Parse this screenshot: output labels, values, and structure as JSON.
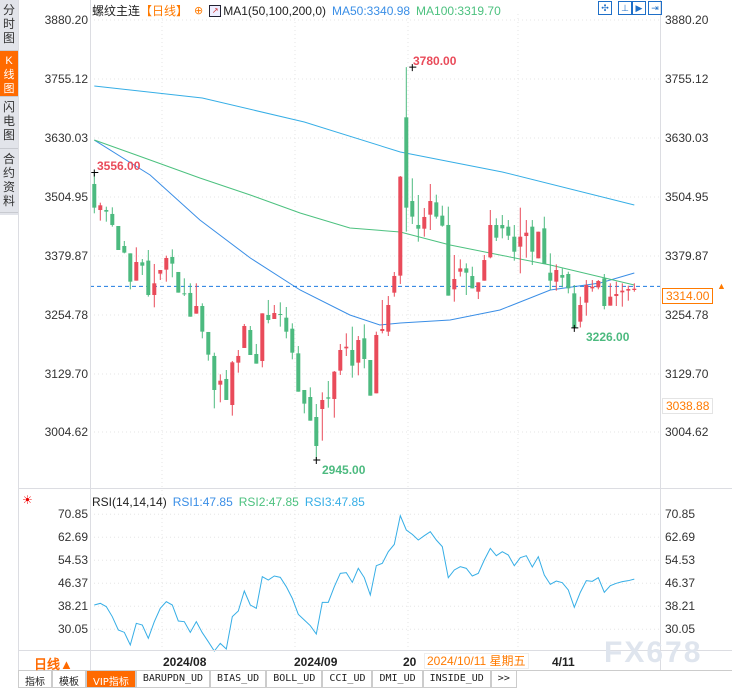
{
  "sidebar": {
    "tabs": [
      {
        "label": "分时图",
        "active": false
      },
      {
        "label": "K线图",
        "active": true
      },
      {
        "label": "闪电图",
        "active": false
      },
      {
        "label": "合约资料",
        "active": false
      }
    ]
  },
  "header": {
    "symbol": "螺纹主连",
    "period": "【日线】",
    "indicator": "MA1(50,100,200,0)",
    "ma50": "MA50:3340.98",
    "ma100": "MA100:3319.70",
    "toolbar_icons": [
      "crosshair-icon",
      "zoom-range-icon",
      "play-icon",
      "jump-end-icon"
    ]
  },
  "price_axis": {
    "ticks": [
      "3880.20",
      "3755.12",
      "3630.03",
      "3504.95",
      "3379.87",
      "3254.78",
      "3129.70",
      "3004.62"
    ],
    "current_tag": "3314.00",
    "low_tag": "3038.88"
  },
  "annotations": {
    "start": "3556.00",
    "high": "3780.00",
    "low": "2945.00",
    "recent_low": "3226.00"
  },
  "rsi": {
    "title": "RSI(14,14,14)",
    "rsi1": "RSI1:47.85",
    "rsi2": "RSI2:47.85",
    "rsi3": "RSI3:47.85",
    "ticks": [
      "70.85",
      "62.69",
      "54.53",
      "46.37",
      "38.21",
      "30.05"
    ]
  },
  "time_axis": {
    "period_label": "日线▲",
    "labels": [
      "2024/08",
      "2024/09",
      "20",
      "4/11"
    ],
    "tooltip": "2024/10/11 星期五"
  },
  "tabs": [
    {
      "label": "指标"
    },
    {
      "label": "模板"
    },
    {
      "label": "VIP指标"
    },
    {
      "label": "BARUPDN_UD"
    },
    {
      "label": "BIAS_UD"
    },
    {
      "label": "BOLL_UD"
    },
    {
      "label": "CCI_UD"
    },
    {
      "label": "DMI_UD"
    },
    {
      "label": "INSIDE_UD"
    },
    {
      "label": ">>"
    }
  ],
  "watermark": "FX678",
  "colors": {
    "up": "#e94b5a",
    "down": "#4cba7f",
    "ma50": "#3a8ee6",
    "ma100": "#4cc17f",
    "ma200": "#36aee6",
    "rsi": "#36aee6",
    "accent": "#ff6a00",
    "last_price_line": "#1e7be0"
  },
  "chart_data": {
    "type": "candlestick",
    "ylim": [
      3004.62,
      3880.2
    ],
    "last_price": 3314.0,
    "candles_ohlc": [
      [
        3531.7,
        3556,
        3469.4,
        3481.4
      ],
      [
        3476.4,
        3492,
        3453.8,
        3486.4
      ],
      [
        3476.4,
        3483.5,
        3451.6,
        3472.9
      ],
      [
        3468,
        3482.1,
        3441,
        3444.6
      ],
      [
        3442.4,
        3442.4,
        3391.4,
        3391.4
      ],
      [
        3399.9,
        3410.6,
        3384.3,
        3385.8
      ],
      [
        3384.3,
        3384.3,
        3307.8,
        3324.1
      ],
      [
        3326.3,
        3397.1,
        3326.3,
        3365.9
      ],
      [
        3365.2,
        3372.3,
        3338.3,
        3358.1
      ],
      [
        3368.8,
        3391.4,
        3292.3,
        3295.8
      ],
      [
        3295.8,
        3361.7,
        3269.6,
        3320.6
      ],
      [
        3341.1,
        3348.9,
        3327.7,
        3348.9
      ],
      [
        3349.6,
        3379.4,
        3324.1,
        3374.4
      ],
      [
        3376.6,
        3392.8,
        3333.4,
        3362.4
      ],
      [
        3344.7,
        3344.7,
        3300.8,
        3300.8
      ],
      [
        3299.3,
        3331.2,
        3293.7,
        3297.9
      ],
      [
        3300.1,
        3320.6,
        3249.7,
        3249.7
      ],
      [
        3256.1,
        3320.6,
        3256.1,
        3272.4
      ],
      [
        3272.4,
        3278.1,
        3203.7,
        3217.9
      ],
      [
        3217.2,
        3217.2,
        3156.2,
        3169
      ],
      [
        3166.2,
        3173.2,
        3054.9,
        3093.9
      ],
      [
        3105.2,
        3127.2,
        3067.7,
        3113.7
      ],
      [
        3117.3,
        3136.4,
        3072.7,
        3072.7
      ],
      [
        3062,
        3155.5,
        3039.4,
        3152.7
      ],
      [
        3152,
        3178.9,
        3130.7,
        3166.2
      ],
      [
        3183.2,
        3234.2,
        3183.2,
        3229.9
      ],
      [
        3221.4,
        3229.9,
        3168.3,
        3168.3
      ],
      [
        3170.4,
        3191.7,
        3149.9,
        3149.9
      ],
      [
        3155.5,
        3256.8,
        3142.1,
        3256.8
      ],
      [
        3253.3,
        3285.2,
        3235.6,
        3242.7
      ],
      [
        3244.8,
        3274.5,
        3244.8,
        3257.5
      ],
      [
        3255.4,
        3280.2,
        3228.5,
        3253.3
      ],
      [
        3247.6,
        3270.3,
        3203.7,
        3217.8
      ],
      [
        3224.2,
        3235.6,
        3159.1,
        3173.2
      ],
      [
        3171.8,
        3187.4,
        3090.3,
        3090.3
      ],
      [
        3093.9,
        3093.9,
        3044.3,
        3064.9
      ],
      [
        3079,
        3099.5,
        3028.7,
        3028.7
      ],
      [
        3036.5,
        3064.1,
        2945,
        2974.9
      ],
      [
        3053.5,
        3088.9,
        2986.2,
        3072.6
      ],
      [
        3078.3,
        3113,
        3056.3,
        3075.5
      ],
      [
        3074.8,
        3134.3,
        3035.1,
        3132.8
      ],
      [
        3135,
        3191.6,
        3125.8,
        3178.9
      ],
      [
        3182.4,
        3214.3,
        3166.1,
        3185.9
      ],
      [
        3178.9,
        3228.5,
        3120.1,
        3145.6
      ],
      [
        3152,
        3208.6,
        3125.1,
        3200.1
      ],
      [
        3203.7,
        3233.4,
        3140,
        3159.8
      ],
      [
        3157.6,
        3157.6,
        3081.8,
        3081.8
      ],
      [
        3086.8,
        3217.9,
        3086.8,
        3210.8
      ],
      [
        3219.3,
        3285.2,
        3214.3,
        3223.5
      ],
      [
        3217.9,
        3293.6,
        3208.6,
        3274.5
      ],
      [
        3300.7,
        3344.7,
        3292.2,
        3336.2
      ],
      [
        3336.9,
        3548.7,
        3319.2,
        3547.3
      ],
      [
        3673.4,
        3780,
        3430.4,
        3481.4
      ],
      [
        3495.5,
        3543.7,
        3446.7,
        3462.3
      ],
      [
        3444.6,
        3508.3,
        3409.1,
        3436.7
      ],
      [
        3436.7,
        3480.7,
        3419.8,
        3461.6
      ],
      [
        3466.5,
        3531.7,
        3433.9,
        3495.5
      ],
      [
        3492.7,
        3509,
        3458,
        3462.3
      ],
      [
        3464.4,
        3485.6,
        3441,
        3443.1
      ],
      [
        3444.6,
        3483.5,
        3294.4,
        3294.4
      ],
      [
        3307.8,
        3380.8,
        3281.6,
        3329.8
      ],
      [
        3345.3,
        3371.5,
        3335,
        3352.4
      ],
      [
        3352.4,
        3363,
        3295.8,
        3343.2
      ],
      [
        3336.1,
        3355.9,
        3309.9,
        3309.9
      ],
      [
        3302.8,
        3322.7,
        3287.2,
        3322.7
      ],
      [
        3326.2,
        3380.8,
        3326.2,
        3370.1
      ],
      [
        3375.8,
        3476.4,
        3373.7,
        3444.5
      ],
      [
        3444.5,
        3458.7,
        3410.5,
        3417.6
      ],
      [
        3444.5,
        3465.8,
        3416.2,
        3437.4
      ],
      [
        3441,
        3455.1,
        3412.6,
        3421.8
      ],
      [
        3419.7,
        3444.5,
        3368.7,
        3387.8
      ],
      [
        3398.5,
        3481.4,
        3341.8,
        3419.7
      ],
      [
        3421.1,
        3455.1,
        3375.1,
        3428.2
      ],
      [
        3441,
        3455.1,
        3359.5,
        3387.8
      ],
      [
        3373.7,
        3430.3,
        3373.7,
        3430.3
      ],
      [
        3437.4,
        3462.2,
        3361.6,
        3361.6
      ],
      [
        3343.2,
        3384.3,
        3306.4,
        3326.2
      ],
      [
        3324.1,
        3360.9,
        3305,
        3348.9
      ],
      [
        3338.3,
        3352.4,
        3312.1,
        3332.6
      ],
      [
        3340.4,
        3345.3,
        3299.3,
        3309.9
      ],
      [
        3299.3,
        3317,
        3226,
        3226.3
      ],
      [
        3239.1,
        3292.2,
        3226.8,
        3274.5
      ],
      [
        3279.5,
        3327.6,
        3251.8,
        3317
      ],
      [
        3309.9,
        3327.6,
        3302.8,
        3313.5
      ],
      [
        3312,
        3327.6,
        3307.8,
        3325.5
      ],
      [
        3331.2,
        3340.4,
        3265.3,
        3272.4
      ],
      [
        3273.1,
        3320.6,
        3273.1,
        3292.2
      ],
      [
        3293.6,
        3324.1,
        3272.4,
        3297.9
      ],
      [
        3301.4,
        3320.6,
        3271,
        3305
      ],
      [
        3305,
        3315.6,
        3283.7,
        3308.5
      ],
      [
        3306.4,
        3320.6,
        3302.8,
        3309.2
      ]
    ],
    "ma_lines": [
      {
        "name": "MA50",
        "points": [
          [
            0,
            3625
          ],
          [
            9.3,
            3550.8
          ],
          [
            17.6,
            3455.2
          ],
          [
            26,
            3374.4
          ],
          [
            34.3,
            3306.4
          ],
          [
            42.6,
            3253.3
          ],
          [
            47.6,
            3232
          ],
          [
            51,
            3236.3
          ],
          [
            59.3,
            3242.6
          ],
          [
            67.6,
            3263.9
          ],
          [
            76,
            3306.4
          ],
          [
            84.3,
            3321.3
          ],
          [
            90,
            3342.5
          ]
        ]
      },
      {
        "name": "MA100",
        "points": [
          [
            0,
            3625.2
          ],
          [
            9.3,
            3582.7
          ],
          [
            17.6,
            3544.4
          ],
          [
            26,
            3508.3
          ],
          [
            34.3,
            3470
          ],
          [
            42.6,
            3438.2
          ],
          [
            51,
            3429.7
          ],
          [
            59.3,
            3402
          ],
          [
            67.6,
            3380.8
          ],
          [
            76,
            3359.5
          ],
          [
            90,
            3317
          ]
        ]
      },
      {
        "points": [
          [
            0,
            3739.9
          ],
          [
            18,
            3714.4
          ],
          [
            35,
            3663.4
          ],
          [
            51,
            3599.7
          ],
          [
            68,
            3557.2
          ],
          [
            90,
            3487
          ]
        ]
      }
    ],
    "rsi_ylim": [
      30.05,
      70.85
    ],
    "rsi_values": [
      38.67,
      39.26,
      38.08,
      34.53,
      29.8,
      28.97,
      24.48,
      32.17,
      31.57,
      26.84,
      32.76,
      37.49,
      39.85,
      38.67,
      33.0,
      32.76,
      28.97,
      32.76,
      28.85,
      25.66,
      22.35,
      25.07,
      23.06,
      34.53,
      36.54,
      43.64,
      38.67,
      37.49,
      48.72,
      47.54,
      48.96,
      48.49,
      45.17,
      41.03,
      35.36,
      33.35,
      31.34,
      28.38,
      39.62,
      39.62,
      45.17,
      49.9,
      50.14,
      46.71,
      51.68,
      48.37,
      42.22,
      52.62,
      53.45,
      57.59,
      60.19,
      70.37,
      65.28,
      63.74,
      61.73,
      63.27,
      64.69,
      61.73,
      59.37,
      48.37,
      51.09,
      52.27,
      51.68,
      48.96,
      49.9,
      54.64,
      58.77,
      56.17,
      57.59,
      56.41,
      52.62,
      55.46,
      56.17,
      52.15,
      55.82,
      49.31,
      46.0,
      47.18,
      46.59,
      44.0,
      37.84,
      43.16,
      47.3,
      47.07,
      48.37,
      43.16,
      45.53,
      46.36,
      46.95,
      47.3,
      47.85
    ]
  }
}
